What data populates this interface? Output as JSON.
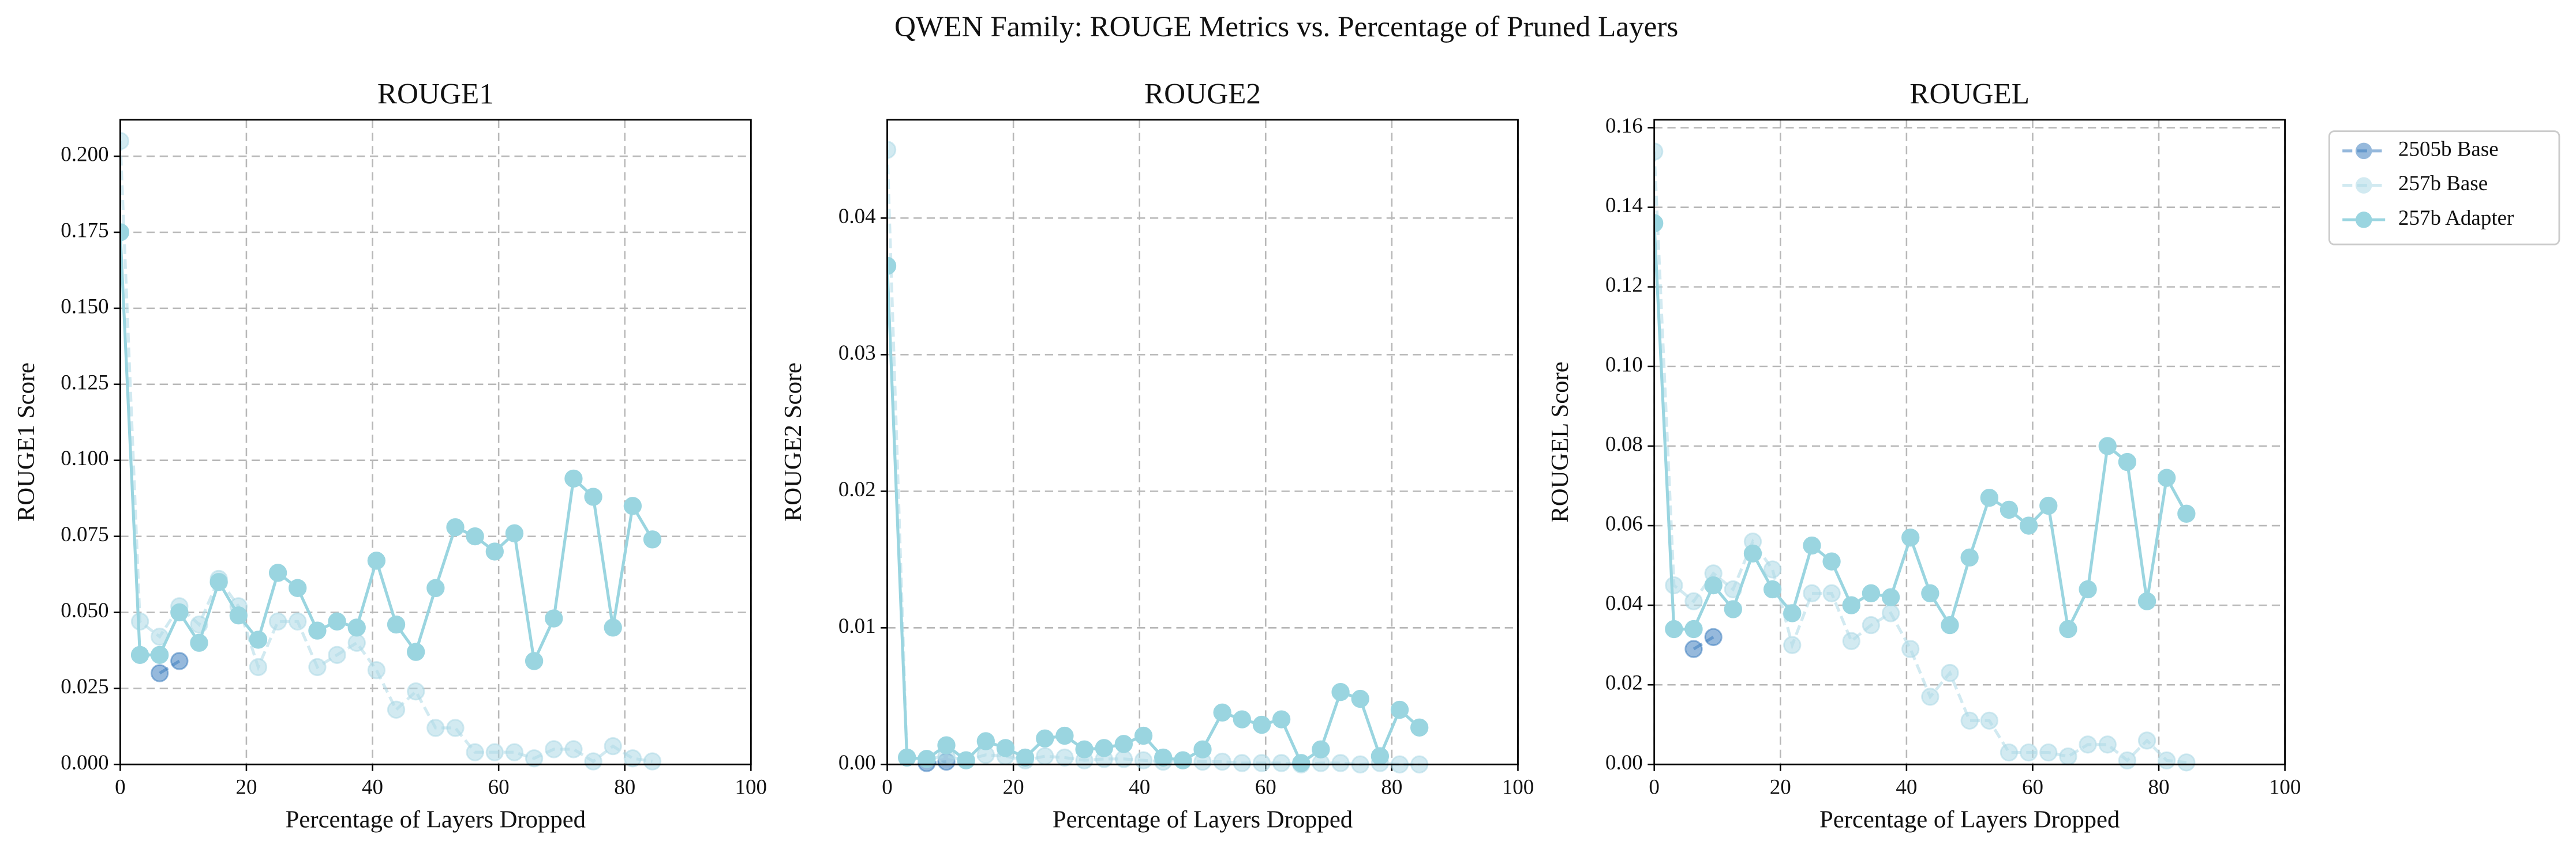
{
  "title": "QWEN Family: ROUGE Metrics vs. Percentage of Pruned Layers",
  "chart_data": [
    {
      "type": "line",
      "title": "ROUGE1",
      "x_label": "Percentage of Layers Dropped",
      "y_label": "ROUGE1 Score",
      "xlim": [
        0,
        100
      ],
      "xticks": [
        0,
        20,
        40,
        60,
        80,
        100
      ],
      "ylim": [
        0,
        0.212
      ],
      "yticks": [
        {
          "value": 0,
          "label": "0.000"
        },
        0.025,
        {
          "value": 0.05,
          "label": "0.050"
        },
        0.075,
        {
          "value": 0.1,
          "label": "0.100"
        },
        0.125,
        {
          "value": 0.15,
          "label": "0.150"
        },
        0.175,
        {
          "value": 0.2,
          "label": "0.200"
        }
      ],
      "grid": true,
      "series": [
        {
          "color": "#3f7fbf",
          "alpha": 0.55,
          "linestyle": "dashed",
          "x": [
            6.25,
            9.375
          ],
          "values": [
            0.03,
            0.034
          ]
        },
        {
          "color": "#add8e6",
          "alpha": 0.55,
          "linestyle": "dashed",
          "x": [
            0,
            3.125,
            6.25,
            9.375,
            12.5,
            15.625,
            18.75,
            21.875,
            25,
            28.125,
            31.25,
            34.375,
            37.5,
            40.625,
            43.75,
            46.875,
            50,
            53.125,
            56.25,
            59.375,
            62.5,
            65.625,
            68.75,
            71.875,
            75,
            78.125,
            81.25,
            84.375
          ],
          "values": [
            0.205,
            0.047,
            0.042,
            0.052,
            0.046,
            0.061,
            0.052,
            0.032,
            0.047,
            0.047,
            0.032,
            0.036,
            0.04,
            0.031,
            0.018,
            0.024,
            0.012,
            0.012,
            0.004,
            0.004,
            0.004,
            0.002,
            0.005,
            0.005,
            0.001,
            0.006,
            0.002,
            0.001
          ]
        },
        {
          "color": "#9ad5e0",
          "alpha": 1,
          "linestyle": "solid",
          "x": [
            0,
            3.125,
            6.25,
            9.375,
            12.5,
            15.625,
            18.75,
            21.875,
            25,
            28.125,
            31.25,
            34.375,
            37.5,
            40.625,
            43.75,
            46.875,
            50,
            53.125,
            56.25,
            59.375,
            62.5,
            65.625,
            68.75,
            71.875,
            75,
            78.125,
            81.25,
            84.375
          ],
          "values": [
            0.175,
            0.036,
            0.036,
            0.05,
            0.04,
            0.06,
            0.049,
            0.041,
            0.063,
            0.058,
            0.044,
            0.047,
            0.045,
            0.067,
            0.046,
            0.037,
            0.058,
            0.078,
            0.075,
            0.07,
            0.076,
            0.034,
            0.048,
            0.094,
            0.088,
            0.045,
            0.085,
            0.074
          ]
        }
      ]
    },
    {
      "type": "line",
      "title": "ROUGE2",
      "x_label": "Percentage of Layers Dropped",
      "y_label": "ROUGE2 Score",
      "xlim": [
        0,
        100
      ],
      "xticks": [
        0,
        20,
        40,
        60,
        80,
        100
      ],
      "ylim": [
        0,
        0.0472
      ],
      "yticks": [
        {
          "value": 0,
          "label": "0.00"
        },
        0.01,
        0.02,
        0.03,
        0.04
      ],
      "grid": true,
      "series": [
        {
          "color": "#3f7fbf",
          "alpha": 0.55,
          "linestyle": "dashed",
          "x": [
            6.25,
            9.375
          ],
          "values": [
            0.0001,
            0.0002
          ]
        },
        {
          "color": "#add8e6",
          "alpha": 0.55,
          "linestyle": "dashed",
          "x": [
            0,
            3.125,
            6.25,
            9.375,
            12.5,
            15.625,
            18.75,
            21.875,
            25,
            28.125,
            31.25,
            34.375,
            37.5,
            40.625,
            43.75,
            46.875,
            50,
            53.125,
            56.25,
            59.375,
            62.5,
            65.625,
            68.75,
            71.875,
            75,
            78.125,
            81.25,
            84.375
          ],
          "values": [
            0.045,
            0.0005,
            0.0004,
            0.0006,
            0.0003,
            0.0007,
            0.0006,
            0.0003,
            0.0006,
            0.0005,
            0.0003,
            0.0004,
            0.0004,
            0.0003,
            0.0002,
            0.0003,
            0.0002,
            0.0002,
            0.0001,
            0.0001,
            0.0001,
            0.0,
            0.0001,
            0.0001,
            0.0,
            0.0001,
            0.0,
            0.0
          ]
        },
        {
          "color": "#9ad5e0",
          "alpha": 1,
          "linestyle": "solid",
          "x": [
            0,
            3.125,
            6.25,
            9.375,
            12.5,
            15.625,
            18.75,
            21.875,
            25,
            28.125,
            31.25,
            34.375,
            37.5,
            40.625,
            43.75,
            46.875,
            50,
            53.125,
            56.25,
            59.375,
            62.5,
            65.625,
            68.75,
            71.875,
            75,
            78.125,
            81.25,
            84.375
          ],
          "values": [
            0.0365,
            0.0005,
            0.0004,
            0.0014,
            0.0003,
            0.0017,
            0.0012,
            0.0005,
            0.0019,
            0.0021,
            0.0011,
            0.0012,
            0.0015,
            0.0021,
            0.0005,
            0.0003,
            0.0011,
            0.0038,
            0.0033,
            0.0029,
            0.0033,
            0.0001,
            0.0011,
            0.0053,
            0.0048,
            0.0006,
            0.004,
            0.0027
          ]
        }
      ]
    },
    {
      "type": "line",
      "title": "ROUGEL",
      "x_label": "Percentage of Layers Dropped",
      "y_label": "ROUGEL Score",
      "xlim": [
        0,
        100
      ],
      "xticks": [
        0,
        20,
        40,
        60,
        80,
        100
      ],
      "ylim": [
        0,
        0.162
      ],
      "yticks": [
        {
          "value": 0,
          "label": "0.00"
        },
        0.02,
        0.04,
        0.06,
        0.08,
        {
          "value": 0.1,
          "label": "0.10"
        },
        0.12,
        0.14,
        0.16
      ],
      "grid": true,
      "legend": "outside upper right",
      "series": [
        {
          "name": "2505b Base",
          "color": "#3f7fbf",
          "alpha": 0.55,
          "linestyle": "dashed",
          "x": [
            6.25,
            9.375
          ],
          "values": [
            0.029,
            0.032
          ]
        },
        {
          "name": "257b Base",
          "color": "#add8e6",
          "alpha": 0.55,
          "linestyle": "dashed",
          "x": [
            0,
            3.125,
            6.25,
            9.375,
            12.5,
            15.625,
            18.75,
            21.875,
            25,
            28.125,
            31.25,
            34.375,
            37.5,
            40.625,
            43.75,
            46.875,
            50,
            53.125,
            56.25,
            59.375,
            62.5,
            65.625,
            68.75,
            71.875,
            75,
            78.125,
            81.25,
            84.375
          ],
          "values": [
            0.154,
            0.045,
            0.041,
            0.048,
            0.044,
            0.056,
            0.049,
            0.03,
            0.043,
            0.043,
            0.031,
            0.035,
            0.038,
            0.029,
            0.017,
            0.023,
            0.011,
            0.011,
            0.003,
            0.003,
            0.003,
            0.002,
            0.005,
            0.005,
            0.001,
            0.006,
            0.001,
            0.0005
          ]
        },
        {
          "name": "257b Adapter",
          "color": "#9ad5e0",
          "alpha": 1,
          "linestyle": "solid",
          "x": [
            0,
            3.125,
            6.25,
            9.375,
            12.5,
            15.625,
            18.75,
            21.875,
            25,
            28.125,
            31.25,
            34.375,
            37.5,
            40.625,
            43.75,
            46.875,
            50,
            53.125,
            56.25,
            59.375,
            62.5,
            65.625,
            68.75,
            71.875,
            75,
            78.125,
            81.25,
            84.375
          ],
          "values": [
            0.136,
            0.034,
            0.034,
            0.045,
            0.039,
            0.053,
            0.044,
            0.038,
            0.055,
            0.051,
            0.04,
            0.043,
            0.042,
            0.057,
            0.043,
            0.035,
            0.052,
            0.067,
            0.064,
            0.06,
            0.065,
            0.034,
            0.044,
            0.08,
            0.076,
            0.041,
            0.072,
            0.063
          ]
        }
      ]
    }
  ]
}
